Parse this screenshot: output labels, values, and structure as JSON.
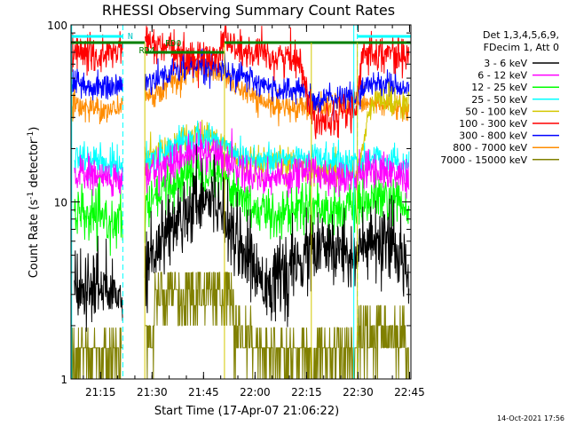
{
  "chart_data": {
    "type": "line",
    "title": "RHESSI Observing Summary Count Rates",
    "xlabel": "Start Time (17-Apr-07 21:06:22)",
    "ylabel_main": "Count Rate (s",
    "ylabel_sup1": "-1",
    "ylabel_mid": " detector",
    "ylabel_sup2": "-1",
    "ylabel_end": ")",
    "yscale": "log",
    "ylim": [
      1,
      100
    ],
    "xlim_minutes": [
      0,
      99
    ],
    "x_ticks": [
      {
        "label": "21:15",
        "min": 8.6
      },
      {
        "label": "21:30",
        "min": 23.6
      },
      {
        "label": "21:45",
        "min": 38.6
      },
      {
        "label": "22:00",
        "min": 53.6
      },
      {
        "label": "22:15",
        "min": 68.6
      },
      {
        "label": "22:30",
        "min": 83.6
      },
      {
        "label": "22:45",
        "min": 98.6
      }
    ],
    "y_ticks": [
      {
        "label": "1",
        "value": 1
      },
      {
        "label": "10",
        "value": 10
      },
      {
        "label": "100",
        "value": 100
      }
    ],
    "legend": {
      "position": "top-right",
      "header1": "Det 1,3,4,5,6,9,",
      "header2": "FDecim 1, Att 0",
      "entries": [
        {
          "label": "3 - 6 keV",
          "color": "#000000"
        },
        {
          "label": "6 - 12 keV",
          "color": "#ff00ff"
        },
        {
          "label": "12 - 25 keV",
          "color": "#00ff00"
        },
        {
          "label": "25 - 50 keV",
          "color": "#00ffff"
        },
        {
          "label": "50 - 100 keV",
          "color": "#d4c800"
        },
        {
          "label": "100 - 300 keV",
          "color": "#ff0000"
        },
        {
          "label": "300 - 800 keV",
          "color": "#0000ff"
        },
        {
          "label": "800 - 7000 keV",
          "color": "#ff8c00"
        },
        {
          "label": "7000 - 15000 keV",
          "color": "#808000"
        }
      ]
    },
    "annotations": {
      "night": "N",
      "rd0": "RD0",
      "rd4": "RD4",
      "night_intervals_min": [
        [
          0,
          15.1
        ],
        [
          83.4,
          99
        ]
      ],
      "rd0_intervals_min": [
        [
          0,
          21.5
        ],
        [
          44.7,
          83.4
        ],
        [
          83.4,
          99
        ]
      ],
      "rd4_intervals_min": [
        [
          21.5,
          44.7
        ]
      ]
    },
    "series": [
      {
        "label": "3 - 6 keV",
        "color": "#000000",
        "noise": 0.25,
        "gaps": [
          [
            0,
            1
          ],
          [
            15.1,
            21.5
          ]
        ],
        "points": [
          [
            1,
            3
          ],
          [
            8,
            3.3
          ],
          [
            14,
            2.9
          ],
          [
            21.5,
            4.5
          ],
          [
            28,
            6.8
          ],
          [
            34,
            9.5
          ],
          [
            38,
            11
          ],
          [
            42,
            10.5
          ],
          [
            46,
            8
          ],
          [
            50,
            5.5
          ],
          [
            54,
            4
          ],
          [
            58,
            3.5
          ],
          [
            63,
            3.8
          ],
          [
            67,
            4.6
          ],
          [
            70,
            5.3
          ],
          [
            75,
            5.3
          ],
          [
            80,
            5.3
          ],
          [
            83.4,
            5.2
          ],
          [
            88,
            5.7
          ],
          [
            94,
            5.4
          ],
          [
            98.5,
            4.2
          ]
        ]
      },
      {
        "label": "6 - 12 keV",
        "color": "#ff00ff",
        "noise": 0.12,
        "gaps": [
          [
            0,
            1
          ],
          [
            15.1,
            21.5
          ]
        ],
        "points": [
          [
            1,
            14.5
          ],
          [
            8,
            14
          ],
          [
            14,
            13
          ],
          [
            21.5,
            14
          ],
          [
            28,
            16.5
          ],
          [
            34,
            18.5
          ],
          [
            38,
            19.5
          ],
          [
            42,
            19
          ],
          [
            46,
            17
          ],
          [
            50,
            15
          ],
          [
            54,
            14
          ],
          [
            58,
            13.5
          ],
          [
            63,
            14
          ],
          [
            67,
            14.8
          ],
          [
            70,
            15
          ],
          [
            75,
            14
          ],
          [
            80,
            14
          ],
          [
            83.4,
            14
          ],
          [
            88,
            15.5
          ],
          [
            94,
            14.5
          ],
          [
            98.5,
            13.5
          ]
        ]
      },
      {
        "label": "12 - 25 keV",
        "color": "#00ff00",
        "noise": 0.16,
        "gaps": [
          [
            0,
            1
          ],
          [
            15.1,
            21.5
          ]
        ],
        "points": [
          [
            1,
            8.5
          ],
          [
            8,
            8
          ],
          [
            14,
            7.6
          ],
          [
            21.5,
            9
          ],
          [
            28,
            12
          ],
          [
            34,
            14.5
          ],
          [
            38,
            15.5
          ],
          [
            42,
            15
          ],
          [
            46,
            13
          ],
          [
            50,
            10.5
          ],
          [
            54,
            9
          ],
          [
            58,
            8.5
          ],
          [
            63,
            8.8
          ],
          [
            67,
            9.5
          ],
          [
            70,
            9.6
          ],
          [
            75,
            9
          ],
          [
            80,
            9
          ],
          [
            83.4,
            9
          ],
          [
            88,
            10.5
          ],
          [
            94,
            10
          ],
          [
            98.5,
            8.5
          ]
        ]
      },
      {
        "label": "25 - 50 keV",
        "color": "#00ffff",
        "noise": 0.1,
        "gaps": [
          [
            0,
            1
          ],
          [
            15.1,
            21.5
          ]
        ],
        "points": [
          [
            1,
            17.5
          ],
          [
            8,
            17
          ],
          [
            14,
            16
          ],
          [
            21.5,
            17
          ],
          [
            28,
            19.5
          ],
          [
            34,
            22
          ],
          [
            38,
            23
          ],
          [
            42,
            22.5
          ],
          [
            46,
            20
          ],
          [
            50,
            18
          ],
          [
            54,
            17.5
          ],
          [
            58,
            17
          ],
          [
            63,
            17.5
          ],
          [
            67,
            18
          ],
          [
            70,
            18
          ],
          [
            75,
            17
          ],
          [
            80,
            16.5
          ],
          [
            83.4,
            16.5
          ],
          [
            88,
            18
          ],
          [
            94,
            17
          ],
          [
            98.5,
            16
          ]
        ]
      },
      {
        "label": "50 - 100 keV",
        "color": "#d4c800",
        "noise": 0.1,
        "gaps": [
          [
            0,
            21.5
          ]
        ],
        "points": [
          [
            21.5,
            17
          ],
          [
            28,
            20
          ],
          [
            34,
            22.5
          ],
          [
            38,
            24
          ],
          [
            42,
            23
          ],
          [
            46,
            19.5
          ],
          [
            50,
            17
          ],
          [
            54,
            16
          ],
          [
            58,
            16
          ],
          [
            63,
            16.5
          ],
          [
            67,
            16.8
          ],
          [
            70,
            15
          ],
          [
            75,
            15
          ],
          [
            80,
            15
          ],
          [
            83.4,
            15
          ],
          [
            88,
            38
          ],
          [
            94,
            37
          ],
          [
            98.5,
            35
          ]
        ]
      },
      {
        "label": "100 - 300 keV",
        "color": "#ff0000",
        "noise": 0.12,
        "gaps": [
          [
            15.1,
            21.5
          ]
        ],
        "points": [
          [
            0,
            70
          ],
          [
            5,
            68
          ],
          [
            10,
            66
          ],
          [
            15.1,
            75
          ],
          [
            21.5,
            80
          ],
          [
            26,
            75
          ],
          [
            32,
            68
          ],
          [
            38,
            65
          ],
          [
            43,
            68
          ],
          [
            44.7,
            88
          ],
          [
            47,
            75
          ],
          [
            52,
            68
          ],
          [
            58,
            66
          ],
          [
            63,
            65
          ],
          [
            67,
            64
          ],
          [
            70,
            30
          ],
          [
            75,
            30
          ],
          [
            80,
            32
          ],
          [
            83.4,
            33
          ],
          [
            85,
            72
          ],
          [
            90,
            70
          ],
          [
            95,
            68
          ],
          [
            98.5,
            65
          ]
        ]
      },
      {
        "label": "300 - 800 keV",
        "color": "#0000ff",
        "noise": 0.09,
        "gaps": [
          [
            15.1,
            21.5
          ]
        ],
        "points": [
          [
            0,
            46
          ],
          [
            5,
            45
          ],
          [
            10,
            44
          ],
          [
            15.1,
            46
          ],
          [
            21.5,
            47
          ],
          [
            27,
            52
          ],
          [
            33,
            58
          ],
          [
            38,
            60
          ],
          [
            43,
            58
          ],
          [
            47,
            54
          ],
          [
            52,
            49
          ],
          [
            56,
            45
          ],
          [
            60,
            43
          ],
          [
            64,
            43
          ],
          [
            67,
            44
          ],
          [
            70,
            38
          ],
          [
            75,
            38
          ],
          [
            80,
            39
          ],
          [
            83.4,
            39
          ],
          [
            86,
            47
          ],
          [
            92,
            46
          ],
          [
            98.5,
            42
          ]
        ]
      },
      {
        "label": "800 - 7000 keV",
        "color": "#ff8c00",
        "noise": 0.08,
        "gaps": [
          [
            15.1,
            21.5
          ]
        ],
        "points": [
          [
            0,
            35
          ],
          [
            5,
            34
          ],
          [
            10,
            33
          ],
          [
            15.1,
            35
          ],
          [
            21.5,
            38
          ],
          [
            27,
            44
          ],
          [
            33,
            52
          ],
          [
            38,
            57
          ],
          [
            43,
            54
          ],
          [
            47,
            47
          ],
          [
            52,
            40
          ],
          [
            56,
            36
          ],
          [
            60,
            34
          ],
          [
            64,
            34
          ],
          [
            67,
            35
          ],
          [
            70,
            34
          ],
          [
            75,
            35
          ],
          [
            80,
            36
          ],
          [
            83.4,
            37
          ],
          [
            86,
            36
          ],
          [
            92,
            35
          ],
          [
            98.5,
            33
          ]
        ]
      },
      {
        "label": "7000 - 15000 keV",
        "color": "#808000",
        "noise": 0.0,
        "quantized": true,
        "gaps": [
          [
            15.1,
            21.5
          ]
        ],
        "points": [
          [
            0,
            1.5
          ],
          [
            8,
            1.5
          ],
          [
            15.1,
            1.5
          ],
          [
            21.5,
            2.2
          ],
          [
            28,
            3.2
          ],
          [
            34,
            4.0
          ],
          [
            38,
            4.3
          ],
          [
            42,
            4.0
          ],
          [
            46,
            3.0
          ],
          [
            50,
            2.0
          ],
          [
            54,
            1.6
          ],
          [
            58,
            1.5
          ],
          [
            63,
            1.5
          ],
          [
            67,
            1.6
          ],
          [
            70,
            1.6
          ],
          [
            75,
            1.6
          ],
          [
            80,
            1.6
          ],
          [
            83.4,
            1.7
          ],
          [
            88,
            2.4
          ],
          [
            94,
            2.1
          ],
          [
            98.5,
            1.6
          ]
        ]
      }
    ]
  },
  "timestamp": "14-Oct-2021 17:56"
}
